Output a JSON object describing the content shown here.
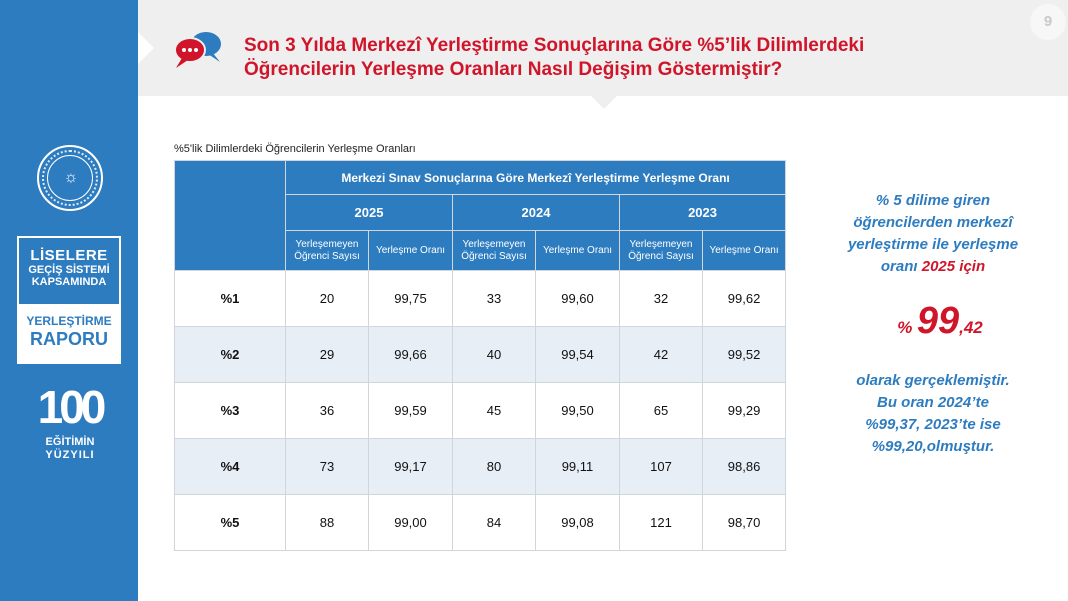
{
  "page_number": "9",
  "title": {
    "line1": "Son 3 Yılda Merkezî Yerleştirme Sonuçlarına Göre %5’lik Dilimlerdeki",
    "line2": "Öğrencilerin Yerleşme Oranları Nasıl Değişim Göstermiştir?"
  },
  "sidebar": {
    "badge_line1": "LİSELERE",
    "badge_line2": "GEÇİŞ SİSTEMİ",
    "badge_line3": "KAPSAMINDA",
    "badge_bottom1": "YERLEŞTİRME",
    "badge_bottom2": "RAPORU",
    "hundred_number": "100",
    "hundred_line1": "EĞİTİMİN",
    "hundred_line2": "YÜZYILI"
  },
  "table": {
    "caption": "%5'lik Dilimlerdeki Öğrencilerin Yerleşme Oranları",
    "main_header": "Merkezi Sınav Sonuçlarına Göre Merkezî Yerleştirme Yerleşme Oranı",
    "years": [
      "2025",
      "2024",
      "2023"
    ],
    "sub_headers": {
      "unplaced_line1": "Yerleşemeyen",
      "unplaced_line2": "Öğrenci Sayısı",
      "rate": "Yerleşme Oranı"
    },
    "rows": [
      {
        "label": "%1",
        "values": [
          "20",
          "99,75",
          "33",
          "99,60",
          "32",
          "99,62"
        ]
      },
      {
        "label": "%2",
        "values": [
          "29",
          "99,66",
          "40",
          "99,54",
          "42",
          "99,52"
        ]
      },
      {
        "label": "%3",
        "values": [
          "36",
          "99,59",
          "45",
          "99,50",
          "65",
          "99,29"
        ]
      },
      {
        "label": "%4",
        "values": [
          "73",
          "99,17",
          "80",
          "99,11",
          "107",
          "98,86"
        ]
      },
      {
        "label": "%5",
        "values": [
          "88",
          "99,00",
          "84",
          "99,08",
          "121",
          "98,70"
        ]
      }
    ]
  },
  "right_panel": {
    "line1": "% 5 dilime giren",
    "line2": "öğrencilerden merkezî",
    "line3": "yerleştirme ile yerleşme",
    "line4_prefix": "oranı",
    "line4_year": "2025 için",
    "pct_sign": "%",
    "pct_int": "99",
    "pct_dec": ",42",
    "line5": "olarak gerçeklemiştir.",
    "line6": "Bu oran  2024’te",
    "line7": "%99,37, 2023’te ise",
    "line8": "%99,20,olmuştur."
  },
  "colors": {
    "brand_blue": "#2e7cc0",
    "title_red": "#d0152a",
    "row_alt": "#e8eef6"
  }
}
